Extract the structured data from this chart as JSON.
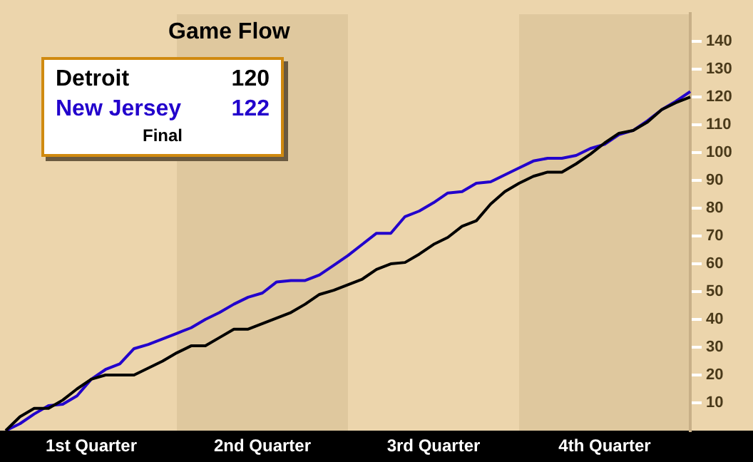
{
  "chart_data": {
    "type": "line",
    "title": "Game Flow",
    "annotations": [
      "120",
      "122",
      "Final"
    ],
    "categories": [
      null,
      null,
      null,
      null,
      null,
      null,
      "1st Quarter",
      null,
      null,
      null,
      null,
      null,
      null,
      null,
      null,
      null,
      null,
      null,
      "2nd Quarter",
      null,
      null,
      null,
      null,
      null,
      null,
      null,
      null,
      null,
      null,
      null,
      "3rd Quarter",
      null,
      null,
      null,
      null,
      null,
      null,
      null,
      null,
      null,
      null,
      null,
      "4th Quarter",
      null,
      null,
      null,
      null,
      null,
      null
    ],
    "ylim": [
      0,
      150
    ],
    "yticks": [
      10,
      20,
      30,
      40,
      50,
      60,
      70,
      80,
      90,
      100,
      110,
      120,
      130,
      140
    ],
    "legend": "top left",
    "grid": false,
    "marker": "none",
    "series": [
      {
        "name": "Detroit",
        "color": "#000000",
        "values": [
          0,
          5,
          8,
          8,
          11,
          15,
          18.5,
          20,
          20,
          20,
          22.5,
          25,
          28,
          30.5,
          30.5,
          33.5,
          36.5,
          36.5,
          38.5,
          40.5,
          42.5,
          45.5,
          49,
          50.5,
          52.5,
          54.5,
          58,
          60,
          60.5,
          63.5,
          67,
          69.5,
          73.5,
          75.5,
          81.5,
          86,
          89,
          91.5,
          93,
          93,
          96,
          99.5,
          103.5,
          107,
          108,
          111,
          115.5,
          118,
          120
        ]
      },
      {
        "name": "New Jersey",
        "color": "#2200cc",
        "values": [
          0,
          2.5,
          6,
          9,
          9.5,
          12.5,
          18.5,
          22,
          24,
          29.5,
          31,
          33,
          35,
          37,
          40,
          42.5,
          45.5,
          48,
          49.5,
          53.5,
          54,
          54,
          56,
          59.5,
          63,
          67,
          71,
          71,
          77,
          79,
          82,
          85.5,
          86,
          89,
          89.5,
          92,
          94.5,
          97,
          98,
          98,
          99,
          101.5,
          103,
          106.5,
          108,
          111.5,
          115.5,
          118.5,
          122
        ]
      }
    ]
  }
}
